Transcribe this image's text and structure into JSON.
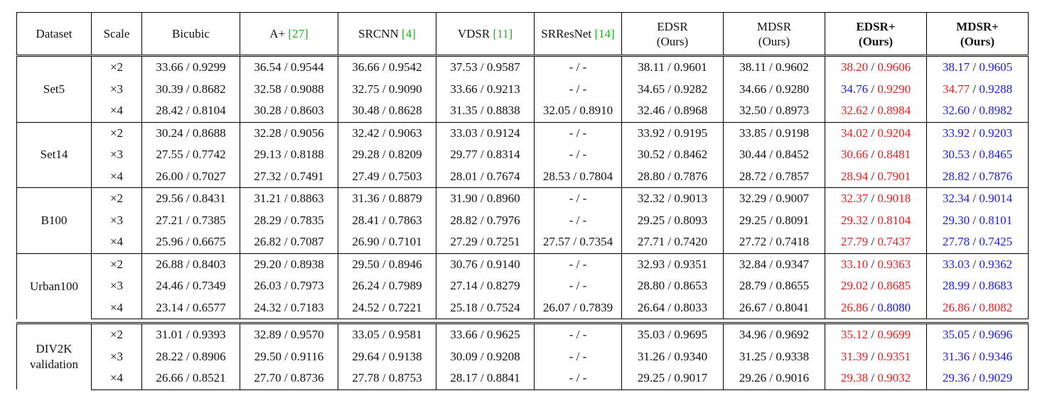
{
  "columns": [
    {
      "label": "Dataset"
    },
    {
      "label": "Scale"
    },
    {
      "label": "Bicubic"
    },
    {
      "label": "A+",
      "cite": "[27]"
    },
    {
      "label": "SRCNN",
      "cite": "[4]"
    },
    {
      "label": "VDSR",
      "cite": "[11]"
    },
    {
      "label": "SRResNet",
      "cite": "[14]"
    },
    {
      "label": "EDSR",
      "sub": "(Ours)"
    },
    {
      "label": "MDSR",
      "sub": "(Ours)"
    },
    {
      "label": "EDSR+",
      "sub": "(Ours)",
      "bold": true
    },
    {
      "label": "MDSR+",
      "sub": "(Ours)",
      "bold": true
    }
  ],
  "colors": {
    "best": "#ee1c1c",
    "second": "#1a1ae6",
    "cite": "#1db31d"
  },
  "groups": [
    {
      "name": [
        "Set5"
      ],
      "rows": [
        {
          "scale": "×2",
          "cells": [
            "33.66 / 0.9299",
            "36.54 / 0.9544",
            "36.66 / 0.9542",
            "37.53 / 0.9587",
            "- / -",
            "38.11 / 0.9601",
            "38.11 / 0.9602",
            [
              "38.20",
              "r",
              "0.9606",
              "r"
            ],
            [
              "38.17",
              "b",
              "0.9605",
              "b"
            ]
          ]
        },
        {
          "scale": "×3",
          "cells": [
            "30.39 / 0.8682",
            "32.58 / 0.9088",
            "32.75 / 0.9090",
            "33.66 / 0.9213",
            "- / -",
            "34.65 / 0.9282",
            "34.66 / 0.9280",
            [
              "34.76",
              "b",
              "0.9290",
              "r"
            ],
            [
              "34.77",
              "r",
              "0.9288",
              "b"
            ]
          ]
        },
        {
          "scale": "×4",
          "cells": [
            "28.42 / 0.8104",
            "30.28 / 0.8603",
            "30.48 / 0.8628",
            "31.35 / 0.8838",
            "32.05 / 0.8910",
            "32.46 / 0.8968",
            "32.50 / 0.8973",
            [
              "32.62",
              "r",
              "0.8984",
              "r"
            ],
            [
              "32.60",
              "b",
              "0.8982",
              "b"
            ]
          ]
        }
      ]
    },
    {
      "name": [
        "Set14"
      ],
      "rows": [
        {
          "scale": "×2",
          "cells": [
            "30.24 / 0.8688",
            "32.28 / 0.9056",
            "32.42 / 0.9063",
            "33.03 / 0.9124",
            "- / -",
            "33.92 / 0.9195",
            "33.85 / 0.9198",
            [
              "34.02",
              "r",
              "0.9204",
              "r"
            ],
            [
              "33.92",
              "b",
              "0.9203",
              "b"
            ]
          ]
        },
        {
          "scale": "×3",
          "cells": [
            "27.55 / 0.7742",
            "29.13 / 0.8188",
            "29.28 / 0.8209",
            "29.77 / 0.8314",
            "- / -",
            "30.52 / 0.8462",
            "30.44 / 0.8452",
            [
              "30.66",
              "r",
              "0.8481",
              "r"
            ],
            [
              "30.53",
              "b",
              "0.8465",
              "b"
            ]
          ]
        },
        {
          "scale": "×4",
          "cells": [
            "26.00 / 0.7027",
            "27.32 / 0.7491",
            "27.49 / 0.7503",
            "28.01 / 0.7674",
            "28.53 / 0.7804",
            "28.80 / 0.7876",
            "28.72 / 0.7857",
            [
              "28.94",
              "r",
              "0.7901",
              "r"
            ],
            [
              "28.82",
              "b",
              "0.7876",
              "b"
            ]
          ]
        }
      ]
    },
    {
      "name": [
        "B100"
      ],
      "rows": [
        {
          "scale": "×2",
          "cells": [
            "29.56 / 0.8431",
            "31.21 / 0.8863",
            "31.36 / 0.8879",
            "31.90 / 0.8960",
            "- / -",
            "32.32 / 0.9013",
            "32.29 / 0.9007",
            [
              "32.37",
              "r",
              "0.9018",
              "r"
            ],
            [
              "32.34",
              "b",
              "0.9014",
              "b"
            ]
          ]
        },
        {
          "scale": "×3",
          "cells": [
            "27.21 / 0.7385",
            "28.29 / 0.7835",
            "28.41 / 0.7863",
            "28.82 / 0.7976",
            "- / -",
            "29.25 / 0.8093",
            "29.25 / 0.8091",
            [
              "29.32",
              "r",
              "0.8104",
              "r"
            ],
            [
              "29.30",
              "b",
              "0.8101",
              "b"
            ]
          ]
        },
        {
          "scale": "×4",
          "cells": [
            "25.96 / 0.6675",
            "26.82 / 0.7087",
            "26.90 / 0.7101",
            "27.29 / 0.7251",
            "27.57 / 0.7354",
            "27.71 / 0.7420",
            "27.72 / 0.7418",
            [
              "27.79",
              "r",
              "0.7437",
              "r"
            ],
            [
              "27.78",
              "b",
              "0.7425",
              "b"
            ]
          ]
        }
      ]
    },
    {
      "name": [
        "Urban100"
      ],
      "rows": [
        {
          "scale": "×2",
          "cells": [
            "26.88 / 0.8403",
            "29.20 / 0.8938",
            "29.50 / 0.8946",
            "30.76 / 0.9140",
            "- / -",
            "32.93 / 0.9351",
            "32.84 / 0.9347",
            [
              "33.10",
              "r",
              "0.9363",
              "r"
            ],
            [
              "33.03",
              "b",
              "0.9362",
              "b"
            ]
          ]
        },
        {
          "scale": "×3",
          "cells": [
            "24.46 / 0.7349",
            "26.03 / 0.7973",
            "26.24 / 0.7989",
            "27.14 / 0.8279",
            "- / -",
            "28.80 / 0.8653",
            "28.79 / 0.8655",
            [
              "29.02",
              "r",
              "0.8685",
              "r"
            ],
            [
              "28.99",
              "b",
              "0.8683",
              "b"
            ]
          ]
        },
        {
          "scale": "×4",
          "cells": [
            "23.14 / 0.6577",
            "24.32 / 0.7183",
            "24.52 / 0.7221",
            "25.18 / 0.7524",
            "26.07 / 0.7839",
            "26.64 / 0.8033",
            "26.67 / 0.8041",
            [
              "26.86",
              "r",
              "0.8080",
              "b"
            ],
            [
              "26.86",
              "r",
              "0.8082",
              "r"
            ]
          ]
        }
      ]
    },
    {
      "name": [
        "DIV2K",
        "validation"
      ],
      "separated": true,
      "rows": [
        {
          "scale": "×2",
          "cells": [
            "31.01 / 0.9393",
            "32.89 / 0.9570",
            "33.05 / 0.9581",
            "33.66 / 0.9625",
            "- / -",
            "35.03 / 0.9695",
            "34.96 / 0.9692",
            [
              "35.12",
              "r",
              "0.9699",
              "r"
            ],
            [
              "35.05",
              "b",
              "0.9696",
              "b"
            ]
          ]
        },
        {
          "scale": "×3",
          "cells": [
            "28.22 / 0.8906",
            "29.50 / 0.9116",
            "29.64 / 0.9138",
            "30.09 / 0.9208",
            "- / -",
            "31.26 / 0.9340",
            "31.25 / 0.9338",
            [
              "31.39",
              "r",
              "0.9351",
              "r"
            ],
            [
              "31.36",
              "b",
              "0.9346",
              "b"
            ]
          ]
        },
        {
          "scale": "×4",
          "cells": [
            "26.66 / 0.8521",
            "27.70 / 0.8736",
            "27.78 / 0.8753",
            "28.17 / 0.8841",
            "- / -",
            "29.25 / 0.9017",
            "29.26 / 0.9016",
            [
              "29.38",
              "r",
              "0.9032",
              "r"
            ],
            [
              "29.36",
              "b",
              "0.9029",
              "b"
            ]
          ]
        }
      ]
    }
  ]
}
